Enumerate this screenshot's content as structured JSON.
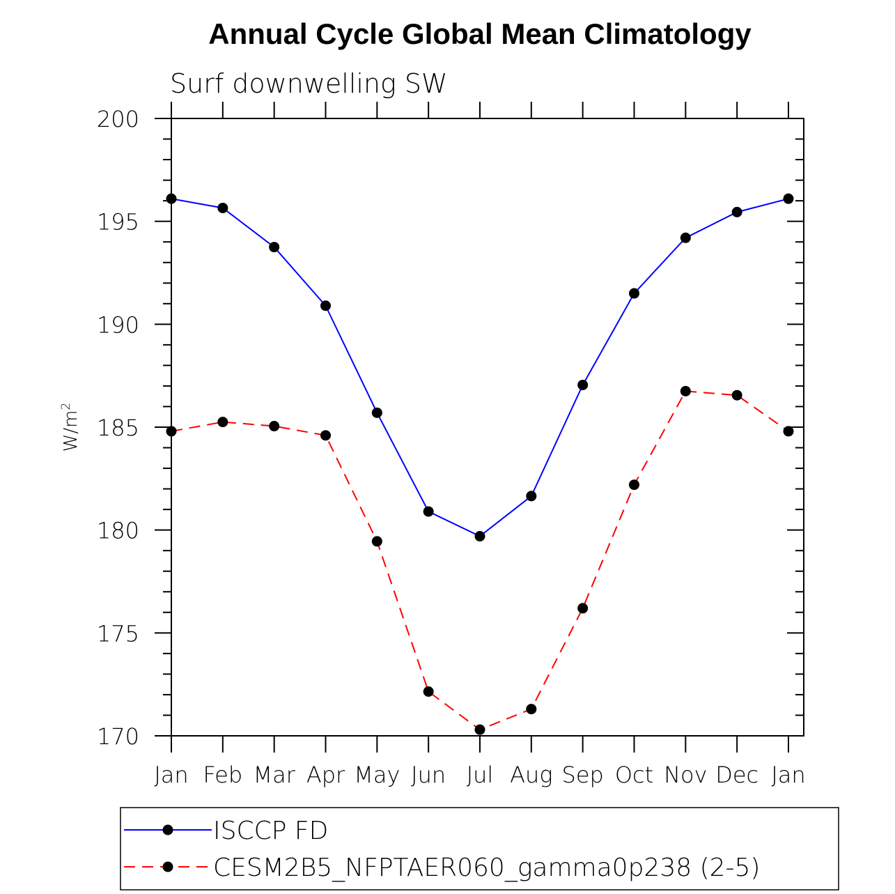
{
  "chart_data": {
    "type": "line",
    "title": "Annual Cycle Global Mean Climatology",
    "subtitle": "Surf downwelling SW",
    "ylabel": "W/m",
    "ylabel_superscript": "2",
    "xlabel": "",
    "ylim": [
      170,
      200
    ],
    "yticks": [
      170,
      175,
      180,
      185,
      190,
      195,
      200
    ],
    "categories": [
      "Jan",
      "Feb",
      "Mar",
      "Apr",
      "May",
      "Jun",
      "Jul",
      "Aug",
      "Sep",
      "Oct",
      "Nov",
      "Dec",
      "Jan"
    ],
    "grid": false,
    "legend_position": "bottom",
    "series": [
      {
        "name": "ISCCP FD",
        "color": "#0000ff",
        "dashed": false,
        "values": [
          196.1,
          195.65,
          193.75,
          190.9,
          185.7,
          180.9,
          179.7,
          181.65,
          187.05,
          191.5,
          194.2,
          195.45,
          196.1
        ]
      },
      {
        "name": "CESM2B5_NFPTAER060_gamma0p238 (2-5)",
        "color": "#ff0000",
        "dashed": true,
        "values": [
          184.8,
          185.25,
          185.05,
          184.6,
          179.45,
          172.15,
          170.3,
          171.3,
          176.2,
          182.2,
          186.75,
          186.55,
          184.8
        ]
      }
    ]
  }
}
